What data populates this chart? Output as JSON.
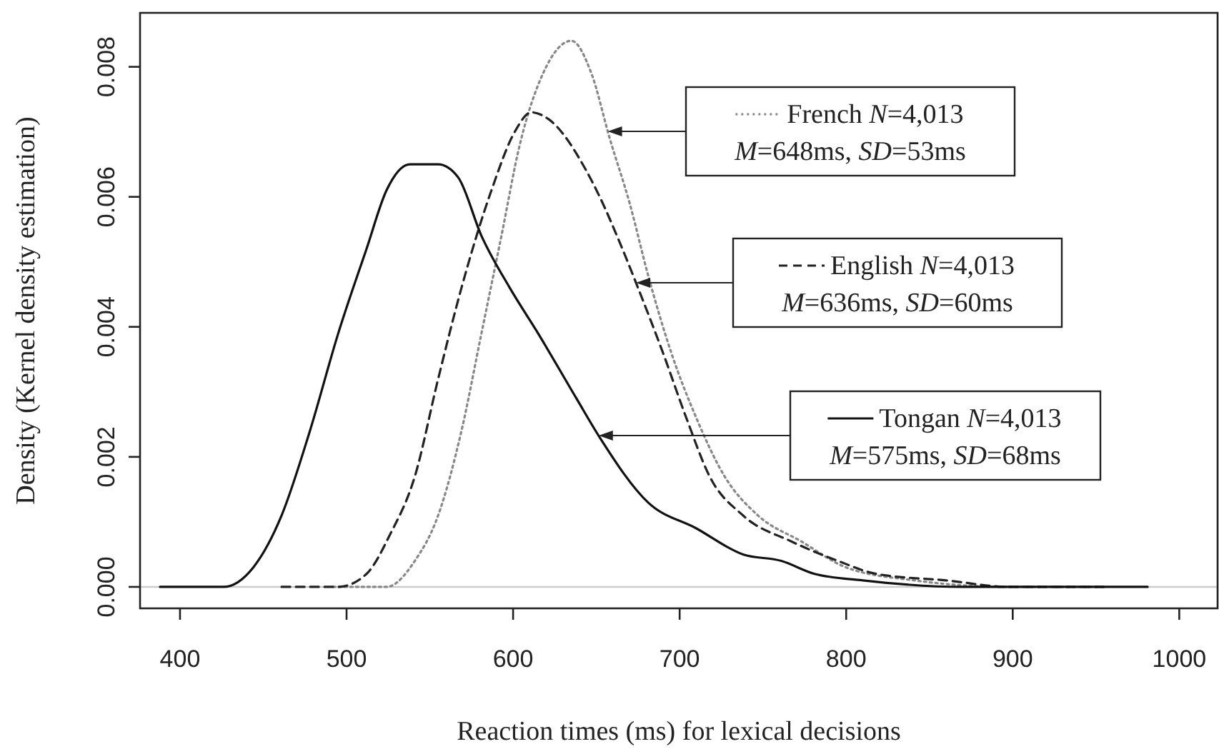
{
  "chart_data": {
    "type": "line",
    "xlabel": "Reaction times (ms) for lexical decisions",
    "ylabel": "Density (Kernel density estimation)",
    "xlim": [
      376,
      1023
    ],
    "ylim": [
      -0.00033,
      0.00883
    ],
    "xticks": [
      400,
      500,
      600,
      700,
      800,
      900,
      1000
    ],
    "yticks": [
      {
        "value": 0,
        "label": "0.000"
      },
      {
        "value": 0.002,
        "label": "0.002"
      },
      {
        "value": 0.004,
        "label": "0.004"
      },
      {
        "value": 0.006,
        "label": "0.006"
      },
      {
        "value": 0.008,
        "label": "0.008"
      }
    ],
    "grid": false,
    "legend": "right",
    "marker": "none",
    "ref_lines": [
      {
        "axis": "y",
        "value": 0,
        "label": null,
        "color": "#cccccc"
      }
    ],
    "series": [
      {
        "name": "French",
        "color": "#888888",
        "line_style": "dotted",
        "x": [
          492,
          524,
          541,
          555,
          569,
          581,
          593,
          604,
          618,
          635,
          647,
          658,
          670,
          681,
          695,
          710,
          727,
          747,
          773,
          800,
          841,
          898,
          956
        ],
        "values": [
          0,
          0,
          0.0004,
          0.0011,
          0.0024,
          0.0039,
          0.0054,
          0.0068,
          0.0079,
          0.0084,
          0.0079,
          0.0069,
          0.0059,
          0.0048,
          0.0036,
          0.0026,
          0.0017,
          0.0011,
          0.0007,
          0.0003,
          0.0001,
          0,
          0
        ]
      },
      {
        "name": "English",
        "color": "#222222",
        "line_style": "dashed",
        "x": [
          461,
          495,
          512,
          526,
          541,
          555,
          569,
          587,
          601,
          611,
          621,
          644,
          652,
          664,
          675,
          690,
          704,
          718,
          738,
          767,
          795,
          818,
          860,
          898,
          956
        ],
        "values": [
          0,
          0,
          0.0002,
          0.0008,
          0.0017,
          0.0032,
          0.0046,
          0.0061,
          0.007,
          0.0073,
          0.0072,
          0.0064,
          0.006,
          0.0053,
          0.0046,
          0.0036,
          0.0026,
          0.0017,
          0.0011,
          0.0007,
          0.0004,
          0.0002,
          0.0001,
          0,
          0
        ]
      },
      {
        "name": "Tongan",
        "color": "#111111",
        "line_style": "solid",
        "x": [
          388,
          426,
          444,
          461,
          478,
          495,
          512,
          524,
          538,
          555,
          567,
          581,
          598,
          615,
          638,
          652,
          681,
          710,
          738,
          761,
          781,
          810,
          870,
          981
        ],
        "values": [
          0,
          0,
          0.0003,
          0.0011,
          0.0024,
          0.0039,
          0.0052,
          0.0061,
          0.0065,
          0.0065,
          0.0063,
          0.0054,
          0.0046,
          0.0039,
          0.0029,
          0.0023,
          0.0013,
          0.0009,
          0.0005,
          0.0004,
          0.0002,
          0.0001,
          0,
          0
        ]
      }
    ],
    "annotations": [
      "N=4,013",
      "M=648ms, SD=53ms",
      "N=4,013",
      "M=636ms, SD=60ms",
      "N=4,013",
      "M=575ms, SD=68ms"
    ]
  }
}
